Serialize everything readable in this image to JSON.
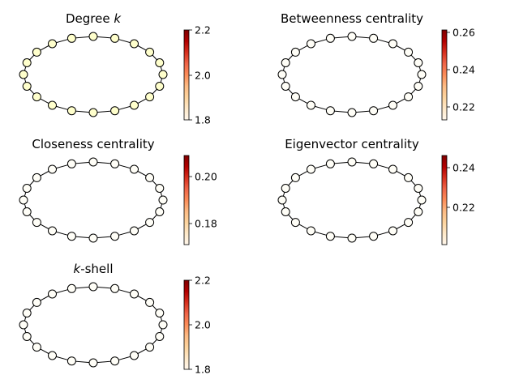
{
  "figure": {
    "panels": [
      {
        "id": "degree",
        "title_main": "Degree ",
        "title_italic": "k",
        "node_color": "#ffffcc",
        "colorbar": {
          "ticks": [
            "2.2",
            "2.0",
            "1.8"
          ]
        }
      },
      {
        "id": "betweenness",
        "title_main": "Betweenness centrality",
        "title_italic": "",
        "node_color": "#fffef7",
        "colorbar": {
          "ticks": [
            "0.26",
            "0.24",
            "0.22"
          ]
        }
      },
      {
        "id": "closeness",
        "title_main": "Closeness centrality",
        "title_italic": "",
        "node_color": "#fffef7",
        "colorbar": {
          "ticks": [
            "0.20",
            "0.18"
          ]
        }
      },
      {
        "id": "eigenvector",
        "title_main": "Eigenvector centrality",
        "title_italic": "",
        "node_color": "#fffef7",
        "colorbar": {
          "ticks": [
            "0.24",
            "0.22"
          ]
        }
      },
      {
        "id": "kshell",
        "title_main": "-shell",
        "title_italic": "k",
        "italic_first": true,
        "node_color": "#fffef7",
        "colorbar": {
          "ticks": [
            "2.2",
            "2.0",
            "1.8"
          ]
        }
      }
    ],
    "colormap": [
      "#fff7ec",
      "#fee8c8",
      "#fdd49e",
      "#fdbb84",
      "#fc8d59",
      "#ef6548",
      "#d7301f",
      "#b30000",
      "#7f0000"
    ]
  }
}
